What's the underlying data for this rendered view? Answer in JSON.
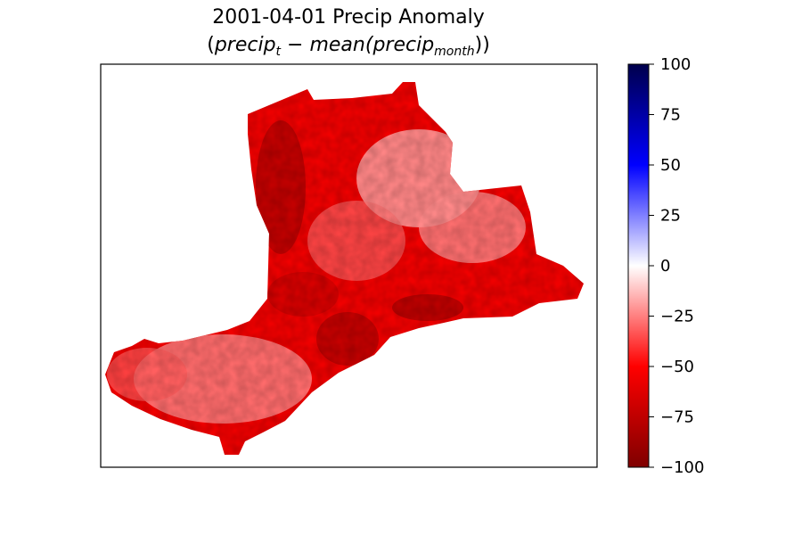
{
  "chart_data": {
    "type": "heatmap",
    "date": "2001-04-01",
    "title": "2001-04-01 Precip Anomaly",
    "formula": {
      "open": "(",
      "lhs": "precip",
      "lhs_sub": "t",
      "op": " − ",
      "fn": "mean(",
      "var": "precip",
      "var_sub": "month",
      "close": "))"
    },
    "colorbar": {
      "cmap": "seismic_r",
      "range": [
        -100,
        100
      ],
      "ticks": [
        "100",
        "75",
        "50",
        "25",
        "0",
        "−25",
        "−50",
        "−75",
        "−100"
      ]
    },
    "map": {
      "description_values": "precipitation anomaly (mm), negative across the region",
      "value_range_shown": [
        -85,
        -15
      ]
    }
  }
}
